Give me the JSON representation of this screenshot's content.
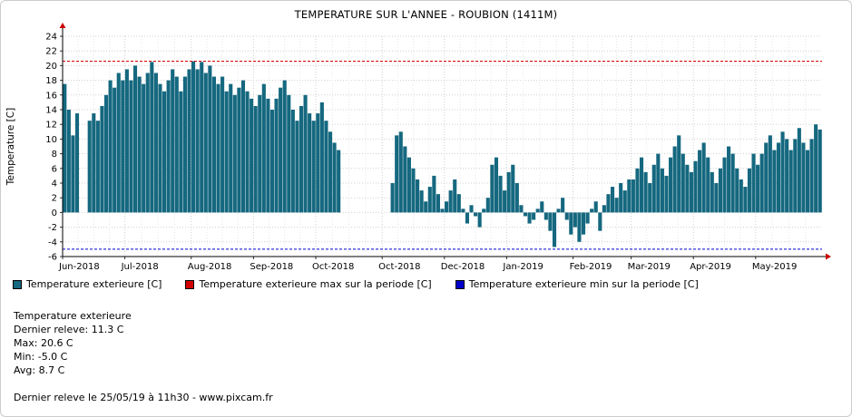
{
  "figure": {
    "footer": "Dernier releve le 25/05/19 à 11h30 - www.pixcam.fr"
  },
  "stats": {
    "title": "Temperature exterieure",
    "lines": [
      "Dernier releve: 11.3 C",
      "Max: 20.6 C",
      "Min: -5.0 C",
      "Avg: 8.7 C"
    ]
  },
  "chart_data": {
    "type": "bar",
    "title": "TEMPERATURE SUR L'ANNEE - ROUBION (1411M)",
    "ylabel": "Temperature [C]",
    "ylim": [
      -6,
      24
    ],
    "ytick_step": 2,
    "grid": true,
    "legend_position": "bottom",
    "xticks": [
      {
        "index": 0,
        "label": "Jun-2018"
      },
      {
        "index": 15,
        "label": "Jul-2018"
      },
      {
        "index": 31,
        "label": "Aug-2018"
      },
      {
        "index": 46,
        "label": "Sep-2018"
      },
      {
        "index": 61,
        "label": "Oct-2018"
      },
      {
        "index": 77,
        "label": "Oct-2018"
      },
      {
        "index": 92,
        "label": "Dec-2018"
      },
      {
        "index": 107,
        "label": "Jan-2019"
      },
      {
        "index": 123,
        "label": "Feb-2019"
      },
      {
        "index": 137,
        "label": "Mar-2019"
      },
      {
        "index": 152,
        "label": "Apr-2019"
      },
      {
        "index": 167,
        "label": "May-2019"
      }
    ],
    "series": [
      {
        "name": "Temperature exterieure [C]",
        "type": "bar",
        "color": "#15687f",
        "values": [
          17.5,
          14,
          10.5,
          13.5,
          null,
          null,
          12.5,
          13.5,
          12.5,
          14.5,
          16,
          18,
          17,
          19,
          18,
          19.5,
          18,
          20,
          18.5,
          17.5,
          19,
          20.5,
          19,
          17.5,
          16.5,
          18,
          19.5,
          18.5,
          16.5,
          18.5,
          19.5,
          20.6,
          19.5,
          20.5,
          19,
          20,
          18.5,
          17.5,
          18.5,
          16.5,
          17.5,
          16,
          17,
          18,
          16.5,
          15.5,
          14.5,
          16,
          17.5,
          15.5,
          14,
          15.5,
          17,
          18,
          16,
          14,
          12.5,
          14.5,
          16,
          13.5,
          12.5,
          13.5,
          15,
          12.5,
          11,
          9.5,
          8.5,
          null,
          null,
          null,
          null,
          null,
          null,
          null,
          null,
          null,
          null,
          null,
          null,
          4,
          10.5,
          11,
          9,
          7.5,
          6,
          4.5,
          3,
          1.5,
          3.5,
          5,
          2.5,
          0.5,
          1.5,
          3,
          4.5,
          2.5,
          0.5,
          -1.5,
          1,
          -0.5,
          -2,
          0.5,
          2,
          6.5,
          7.5,
          5,
          3,
          5.5,
          6.5,
          4,
          1,
          -0.5,
          -1.5,
          -1,
          0.5,
          1.5,
          -1,
          -2.5,
          -4.7,
          0.5,
          2,
          -1,
          -3,
          -2,
          -4,
          -3,
          -1.5,
          0.5,
          1.5,
          -2.5,
          1,
          2.5,
          3.5,
          2,
          4,
          3,
          4.5,
          4.5,
          6,
          7.5,
          5.5,
          4,
          6.5,
          8,
          6,
          5,
          7.5,
          9,
          10.5,
          8,
          6.5,
          5.5,
          7,
          8.5,
          9.5,
          7.5,
          5.5,
          4,
          6,
          7.5,
          9,
          8,
          6,
          4.5,
          3.5,
          6,
          8,
          6.5,
          8,
          9.5,
          10.5,
          8.5,
          9.5,
          11,
          10,
          8.5,
          10,
          11.5,
          9.5,
          8.5,
          10,
          12,
          11.3
        ]
      },
      {
        "name": "Temperature exterieure max sur la periode [C]",
        "type": "hline",
        "value": 20.6,
        "color": "#d40000"
      },
      {
        "name": "Temperature exterieure min sur la periode [C]",
        "type": "hline",
        "value": -5.0,
        "color": "#0000cc"
      }
    ]
  }
}
